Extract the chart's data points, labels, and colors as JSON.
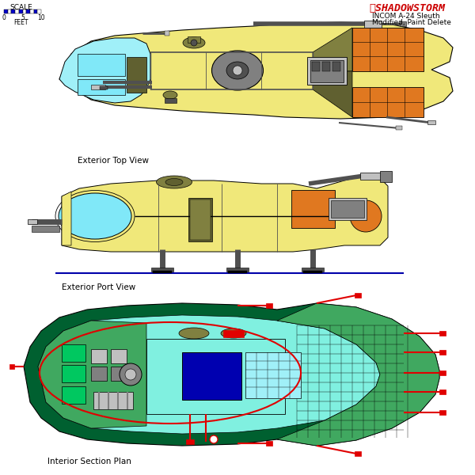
{
  "title": "INCOM A-24 Sleuth\nModified, Paint Delete",
  "scale_label": "SCALE",
  "feet_label": "FEET",
  "view1_label": "Exterior Top View",
  "view2_label": "Exterior Port View",
  "view3_label": "Interior Section Plan",
  "bg_color": "#ffffff",
  "ship_yellow": "#f0e87a",
  "cockpit_cyan": "#80e8f8",
  "cockpit_cyan2": "#a0f0f8",
  "orange_panels": "#e07820",
  "gray": "#909090",
  "gray_dark": "#505050",
  "gray_med": "#808080",
  "gray_light": "#c0c0c0",
  "olive": "#808040",
  "olive_dark": "#606030",
  "green_bright": "#00c860",
  "green_med": "#40a860",
  "teal_light": "#80f0e0",
  "teal_med": "#40d0c0",
  "blue_dark": "#0000b0",
  "red_detail": "#e00000",
  "dark_green_hull": "#006030",
  "scale_blue": "#0000cc",
  "shadowstorm_red": "#cc0000",
  "black": "#000000",
  "white": "#ffffff",
  "tan_dark": "#808050"
}
